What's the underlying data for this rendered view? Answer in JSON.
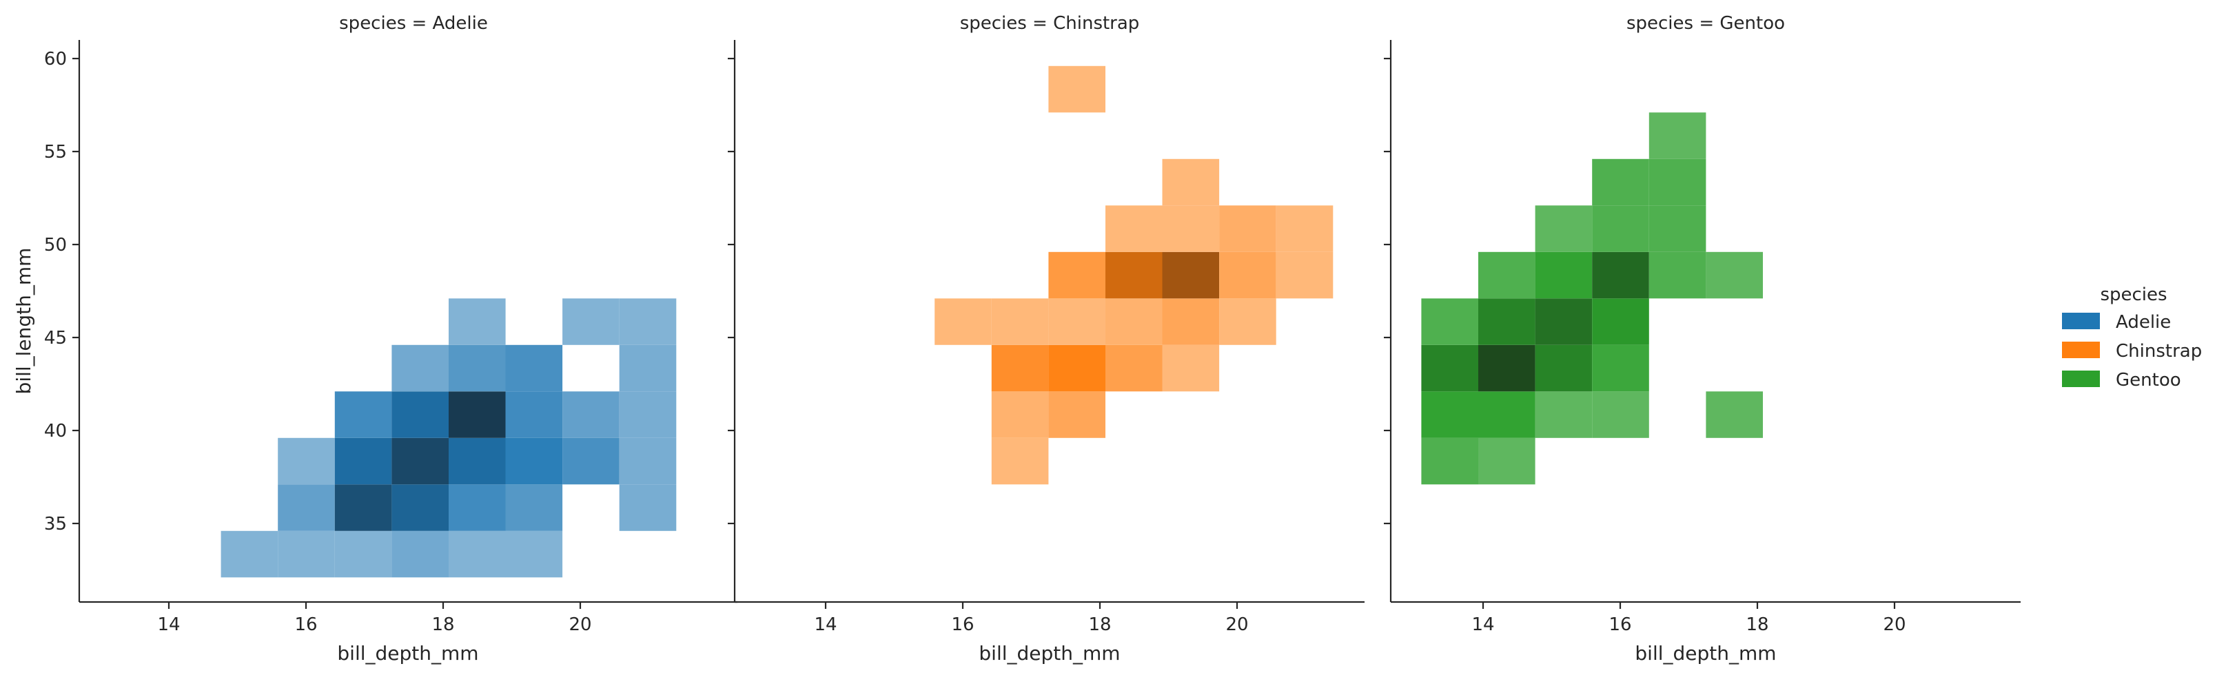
{
  "chart_data": {
    "type": "heatmap",
    "xlabel": "bill_depth_mm",
    "ylabel": "bill_length_mm",
    "xlim": [
      12.7,
      22.0
    ],
    "ylim": [
      31.0,
      61.0
    ],
    "xticks": [
      14,
      16,
      18,
      20
    ],
    "yticks": [
      35,
      40,
      45,
      50,
      55,
      60
    ],
    "bin_x_edges": [
      13.1,
      13.93,
      14.76,
      15.59,
      16.42,
      17.25,
      18.08,
      18.91,
      19.74,
      20.57,
      21.4
    ],
    "bin_y_edges": [
      32.1,
      34.6,
      37.1,
      39.6,
      42.1,
      44.6,
      47.1,
      49.6,
      52.1,
      54.6,
      57.1,
      59.6
    ],
    "legend": {
      "title": "species",
      "placement": "right",
      "entries": [
        {
          "label": "Adelie",
          "color": "#1f77b4"
        },
        {
          "label": "Chinstrap",
          "color": "#ff7f0e"
        },
        {
          "label": "Gentoo",
          "color": "#2ca02c"
        }
      ]
    },
    "facets": [
      {
        "title": "species = Adelie",
        "species": "Adelie",
        "cells": [
          {
            "xi": 2,
            "yi": 0,
            "level": 0.3
          },
          {
            "xi": 3,
            "yi": 0,
            "level": 0.3
          },
          {
            "xi": 4,
            "yi": 0,
            "level": 0.3
          },
          {
            "xi": 5,
            "yi": 0,
            "level": 0.38
          },
          {
            "xi": 6,
            "yi": 0,
            "level": 0.3
          },
          {
            "xi": 7,
            "yi": 0,
            "level": 0.3
          },
          {
            "xi": 3,
            "yi": 1,
            "level": 0.45
          },
          {
            "xi": 4,
            "yi": 1,
            "level": 0.92
          },
          {
            "xi": 5,
            "yi": 1,
            "level": 0.85
          },
          {
            "xi": 6,
            "yi": 1,
            "level": 0.62
          },
          {
            "xi": 7,
            "yi": 1,
            "level": 0.52
          },
          {
            "xi": 9,
            "yi": 1,
            "level": 0.35
          },
          {
            "xi": 3,
            "yi": 2,
            "level": 0.3
          },
          {
            "xi": 4,
            "yi": 2,
            "level": 0.82
          },
          {
            "xi": 5,
            "yi": 2,
            "level": 0.95
          },
          {
            "xi": 6,
            "yi": 2,
            "level": 0.82
          },
          {
            "xi": 7,
            "yi": 2,
            "level": 0.72
          },
          {
            "xi": 8,
            "yi": 2,
            "level": 0.58
          },
          {
            "xi": 9,
            "yi": 2,
            "level": 0.35
          },
          {
            "xi": 4,
            "yi": 3,
            "level": 0.62
          },
          {
            "xi": 5,
            "yi": 3,
            "level": 0.82
          },
          {
            "xi": 6,
            "yi": 3,
            "level": 1.0
          },
          {
            "xi": 7,
            "yi": 3,
            "level": 0.62
          },
          {
            "xi": 8,
            "yi": 3,
            "level": 0.45
          },
          {
            "xi": 9,
            "yi": 3,
            "level": 0.35
          },
          {
            "xi": 5,
            "yi": 4,
            "level": 0.38
          },
          {
            "xi": 6,
            "yi": 4,
            "level": 0.52
          },
          {
            "xi": 7,
            "yi": 4,
            "level": 0.58
          },
          {
            "xi": 9,
            "yi": 4,
            "level": 0.35
          },
          {
            "xi": 6,
            "yi": 5,
            "level": 0.3
          },
          {
            "xi": 8,
            "yi": 5,
            "level": 0.3
          },
          {
            "xi": 9,
            "yi": 5,
            "level": 0.3
          }
        ]
      },
      {
        "title": "species = Chinstrap",
        "species": "Chinstrap",
        "cells": [
          {
            "xi": 4,
            "yi": 2,
            "level": 0.3
          },
          {
            "xi": 4,
            "yi": 3,
            "level": 0.35
          },
          {
            "xi": 5,
            "yi": 3,
            "level": 0.45
          },
          {
            "xi": 4,
            "yi": 4,
            "level": 0.65
          },
          {
            "xi": 5,
            "yi": 4,
            "level": 0.75
          },
          {
            "xi": 6,
            "yi": 4,
            "level": 0.5
          },
          {
            "xi": 7,
            "yi": 4,
            "level": 0.3
          },
          {
            "xi": 3,
            "yi": 5,
            "level": 0.3
          },
          {
            "xi": 4,
            "yi": 5,
            "level": 0.3
          },
          {
            "xi": 5,
            "yi": 5,
            "level": 0.3
          },
          {
            "xi": 6,
            "yi": 5,
            "level": 0.35
          },
          {
            "xi": 7,
            "yi": 5,
            "level": 0.45
          },
          {
            "xi": 8,
            "yi": 5,
            "level": 0.3
          },
          {
            "xi": 5,
            "yi": 6,
            "level": 0.55
          },
          {
            "xi": 6,
            "yi": 6,
            "level": 0.85
          },
          {
            "xi": 7,
            "yi": 6,
            "level": 0.92
          },
          {
            "xi": 8,
            "yi": 6,
            "level": 0.45
          },
          {
            "xi": 9,
            "yi": 6,
            "level": 0.3
          },
          {
            "xi": 6,
            "yi": 7,
            "level": 0.3
          },
          {
            "xi": 7,
            "yi": 7,
            "level": 0.3
          },
          {
            "xi": 8,
            "yi": 7,
            "level": 0.38
          },
          {
            "xi": 9,
            "yi": 7,
            "level": 0.3
          },
          {
            "xi": 7,
            "yi": 8,
            "level": 0.3
          },
          {
            "xi": 5,
            "yi": 10,
            "level": 0.3
          }
        ]
      },
      {
        "title": "species = Gentoo",
        "species": "Gentoo",
        "cells": [
          {
            "xi": 0,
            "yi": 2,
            "level": 0.6
          },
          {
            "xi": 1,
            "yi": 2,
            "level": 0.52
          },
          {
            "xi": 0,
            "yi": 3,
            "level": 0.75
          },
          {
            "xi": 1,
            "yi": 3,
            "level": 0.75
          },
          {
            "xi": 2,
            "yi": 3,
            "level": 0.52
          },
          {
            "xi": 3,
            "yi": 3,
            "level": 0.52
          },
          {
            "xi": 5,
            "yi": 3,
            "level": 0.52
          },
          {
            "xi": 0,
            "yi": 4,
            "level": 0.85
          },
          {
            "xi": 1,
            "yi": 4,
            "level": 1.0
          },
          {
            "xi": 2,
            "yi": 4,
            "level": 0.85
          },
          {
            "xi": 3,
            "yi": 4,
            "level": 0.7
          },
          {
            "xi": 0,
            "yi": 5,
            "level": 0.6
          },
          {
            "xi": 1,
            "yi": 5,
            "level": 0.85
          },
          {
            "xi": 2,
            "yi": 5,
            "level": 0.9
          },
          {
            "xi": 3,
            "yi": 5,
            "level": 0.8
          },
          {
            "xi": 1,
            "yi": 6,
            "level": 0.6
          },
          {
            "xi": 2,
            "yi": 6,
            "level": 0.75
          },
          {
            "xi": 3,
            "yi": 6,
            "level": 0.92
          },
          {
            "xi": 4,
            "yi": 6,
            "level": 0.6
          },
          {
            "xi": 5,
            "yi": 6,
            "level": 0.52
          },
          {
            "xi": 2,
            "yi": 7,
            "level": 0.52
          },
          {
            "xi": 3,
            "yi": 7,
            "level": 0.6
          },
          {
            "xi": 4,
            "yi": 7,
            "level": 0.6
          },
          {
            "xi": 3,
            "yi": 8,
            "level": 0.6
          },
          {
            "xi": 4,
            "yi": 8,
            "level": 0.6
          },
          {
            "xi": 4,
            "yi": 9,
            "level": 0.52
          }
        ]
      }
    ]
  }
}
